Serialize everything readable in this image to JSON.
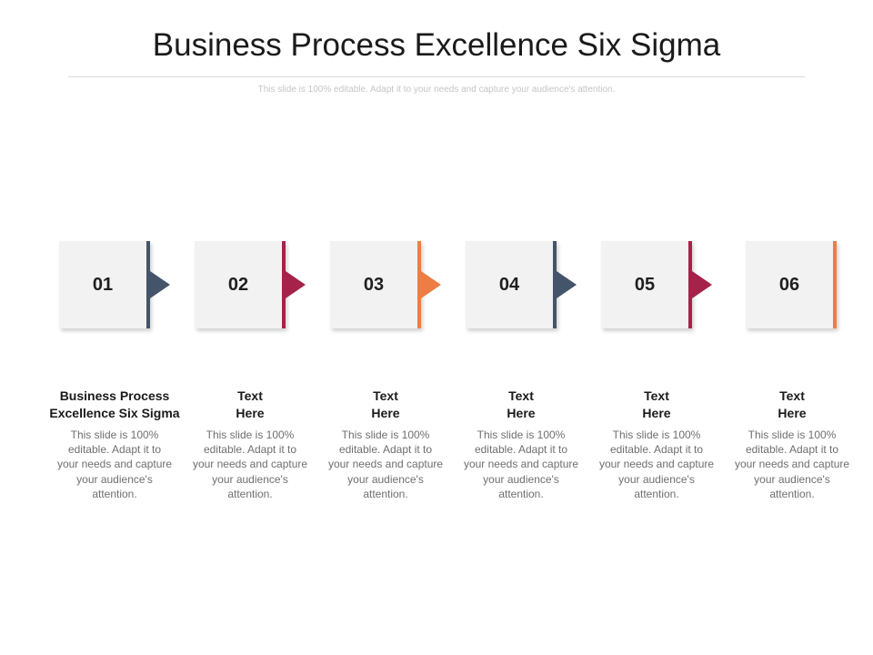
{
  "title": "Business Process Excellence Six Sigma",
  "subtitle": "This slide is 100% editable. Adapt it to your needs and capture your audience's attention.",
  "steps": [
    {
      "number": "01",
      "heading": "Business Process\nExcellence Six Sigma",
      "body": "This slide is 100% editable. Adapt it to your needs and capture your audience's attention.",
      "color": "#44546a",
      "arrow": true
    },
    {
      "number": "02",
      "heading": "Text\nHere",
      "body": "This slide is 100% editable. Adapt it to your needs and capture your audience's attention.",
      "color": "#a5224a",
      "arrow": true
    },
    {
      "number": "03",
      "heading": "Text\nHere",
      "body": "This slide is 100% editable. Adapt it to your needs and capture your audience's attention.",
      "color": "#ed7d45",
      "arrow": true
    },
    {
      "number": "04",
      "heading": "Text\nHere",
      "body": "This slide is 100% editable. Adapt it to your needs and capture your audience's attention.",
      "color": "#44546a",
      "arrow": true
    },
    {
      "number": "05",
      "heading": "Text\nHere",
      "body": "This slide is 100% editable. Adapt it to your needs and capture your audience's attention.",
      "color": "#a5224a",
      "arrow": true
    },
    {
      "number": "06",
      "heading": "Text\nHere",
      "body": "This slide is 100% editable. Adapt it to your needs and capture your audience's attention.",
      "color": "#ed7d45",
      "arrow": false
    }
  ]
}
